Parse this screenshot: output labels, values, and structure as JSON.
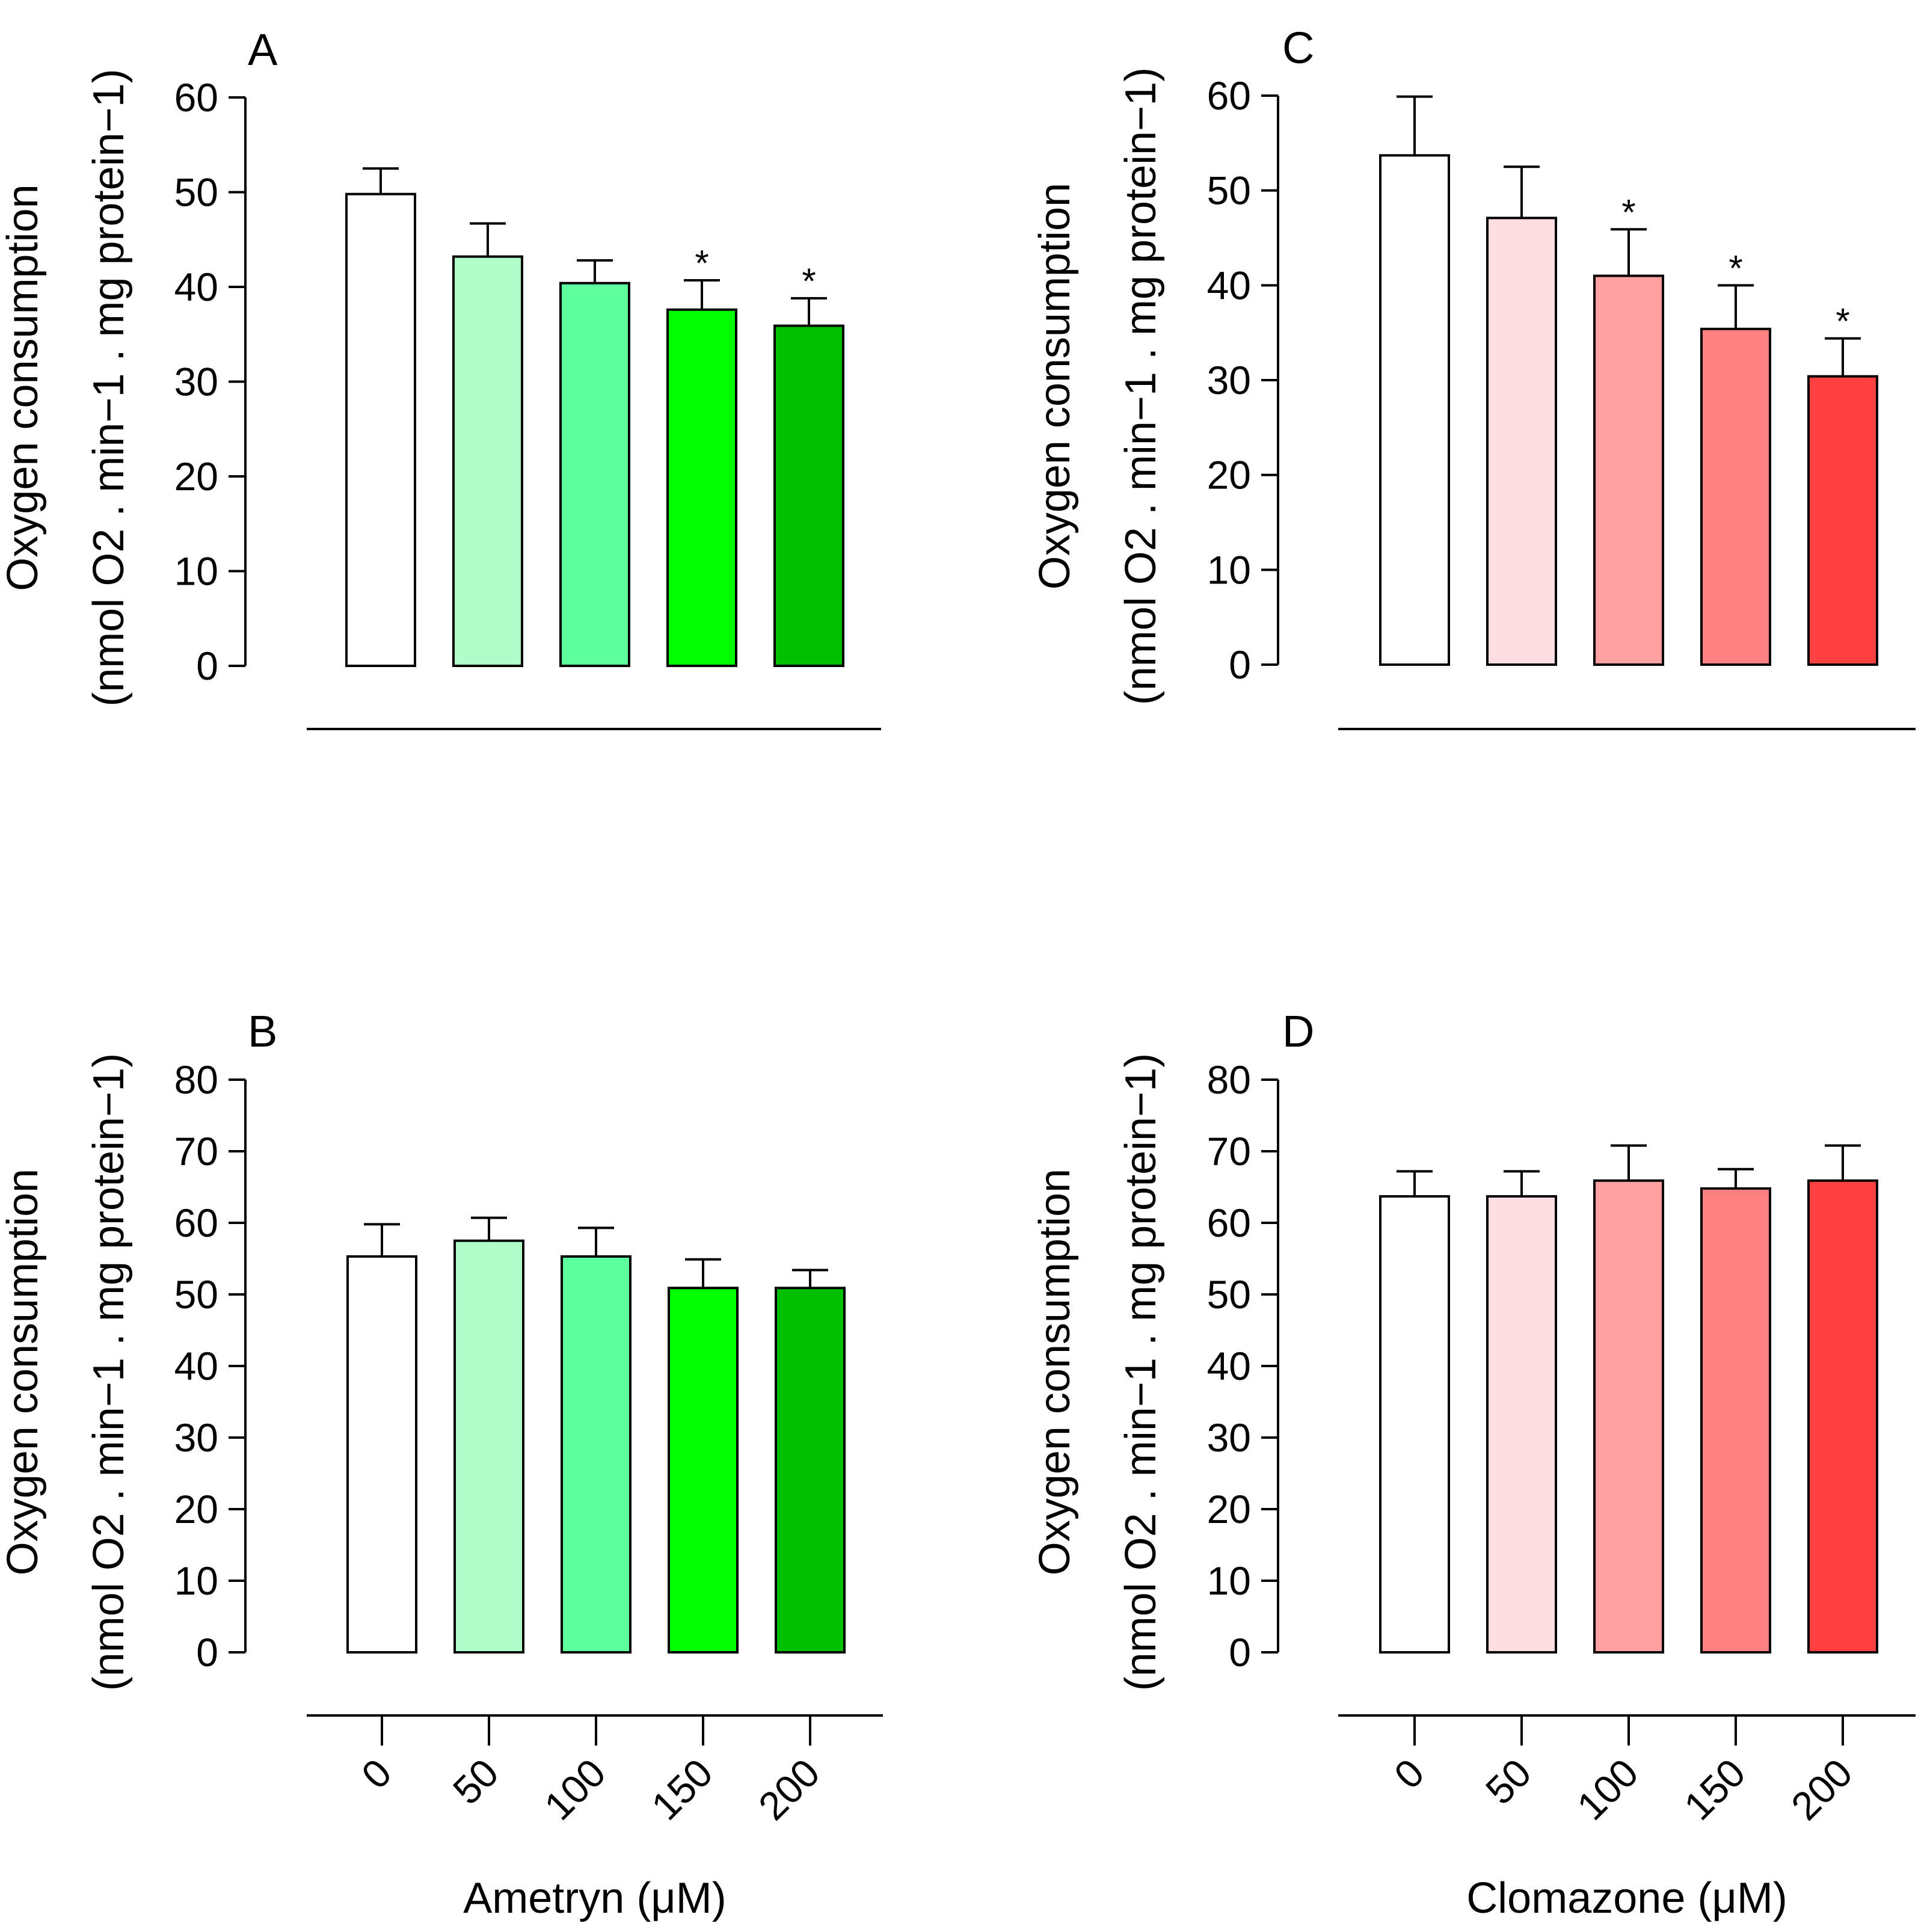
{
  "chart_data": [
    {
      "panel": "A",
      "type": "bar",
      "ylabel_line1": "Oxygen consumption",
      "ylabel_line2": "(nmol O2 . min−1 . mg protein−1)",
      "ylim": [
        0,
        60
      ],
      "yticks": [
        "0",
        "10",
        "20",
        "30",
        "40",
        "50",
        "60"
      ],
      "categories": [
        "0",
        "50",
        "100",
        "150",
        "200"
      ],
      "values": [
        49.8,
        43.2,
        40.4,
        37.6,
        35.9
      ],
      "errors": [
        2.7,
        3.5,
        2.4,
        3.1,
        2.9
      ],
      "significance": [
        "",
        "",
        "",
        "*",
        "*"
      ],
      "colors": [
        "#ffffff",
        "#b0ffc8",
        "#5cff9c",
        "#00ff00",
        "#00c000"
      ],
      "show_category_labels": false,
      "xlabel": ""
    },
    {
      "panel": "B",
      "type": "bar",
      "ylabel_line1": "Oxygen consumption",
      "ylabel_line2": "(nmol O2 . min−1 . mg protein−1)",
      "ylim": [
        0,
        80
      ],
      "yticks": [
        "0",
        "10",
        "20",
        "30",
        "40",
        "50",
        "60",
        "70",
        "80"
      ],
      "categories": [
        "0",
        "50",
        "100",
        "150",
        "200"
      ],
      "values": [
        55.3,
        57.5,
        55.3,
        50.9,
        50.9
      ],
      "errors": [
        4.5,
        3.2,
        4.0,
        4.0,
        2.5
      ],
      "significance": [
        "",
        "",
        "",
        "",
        ""
      ],
      "colors": [
        "#ffffff",
        "#b0ffc8",
        "#5cff9c",
        "#00ff00",
        "#00c000"
      ],
      "show_category_labels": true,
      "xlabel": "Ametryn (μM)"
    },
    {
      "panel": "C",
      "type": "bar",
      "ylabel_line1": "Oxygen consumption",
      "ylabel_line2": "(nmol O2 . min−1 . mg protein−1)",
      "ylim": [
        0,
        60
      ],
      "yticks": [
        "0",
        "10",
        "20",
        "30",
        "40",
        "50",
        "60"
      ],
      "categories": [
        "0",
        "50",
        "100",
        "150",
        "200"
      ],
      "values": [
        53.7,
        47.1,
        41.0,
        35.4,
        30.4
      ],
      "errors": [
        6.2,
        5.4,
        4.9,
        4.6,
        4.0
      ],
      "significance": [
        "",
        "",
        "*",
        "*",
        "*"
      ],
      "colors": [
        "#ffffff",
        "#ffdde0",
        "#ffa0a0",
        "#ff8080",
        "#ff4040"
      ],
      "show_category_labels": false,
      "xlabel": ""
    },
    {
      "panel": "D",
      "type": "bar",
      "ylabel_line1": "Oxygen consumption",
      "ylabel_line2": "(nmol O2 . min−1 . mg protein−1)",
      "ylim": [
        0,
        80
      ],
      "yticks": [
        "0",
        "10",
        "20",
        "30",
        "40",
        "50",
        "60",
        "70",
        "80"
      ],
      "categories": [
        "0",
        "50",
        "100",
        "150",
        "200"
      ],
      "values": [
        63.7,
        63.7,
        65.9,
        64.8,
        65.9
      ],
      "errors": [
        3.5,
        3.5,
        4.9,
        2.7,
        4.9
      ],
      "significance": [
        "",
        "",
        "",
        "",
        ""
      ],
      "colors": [
        "#ffffff",
        "#ffdde0",
        "#ffa0a0",
        "#ff8080",
        "#ff4040"
      ],
      "show_category_labels": true,
      "xlabel": "Clomazone (μM)"
    }
  ]
}
